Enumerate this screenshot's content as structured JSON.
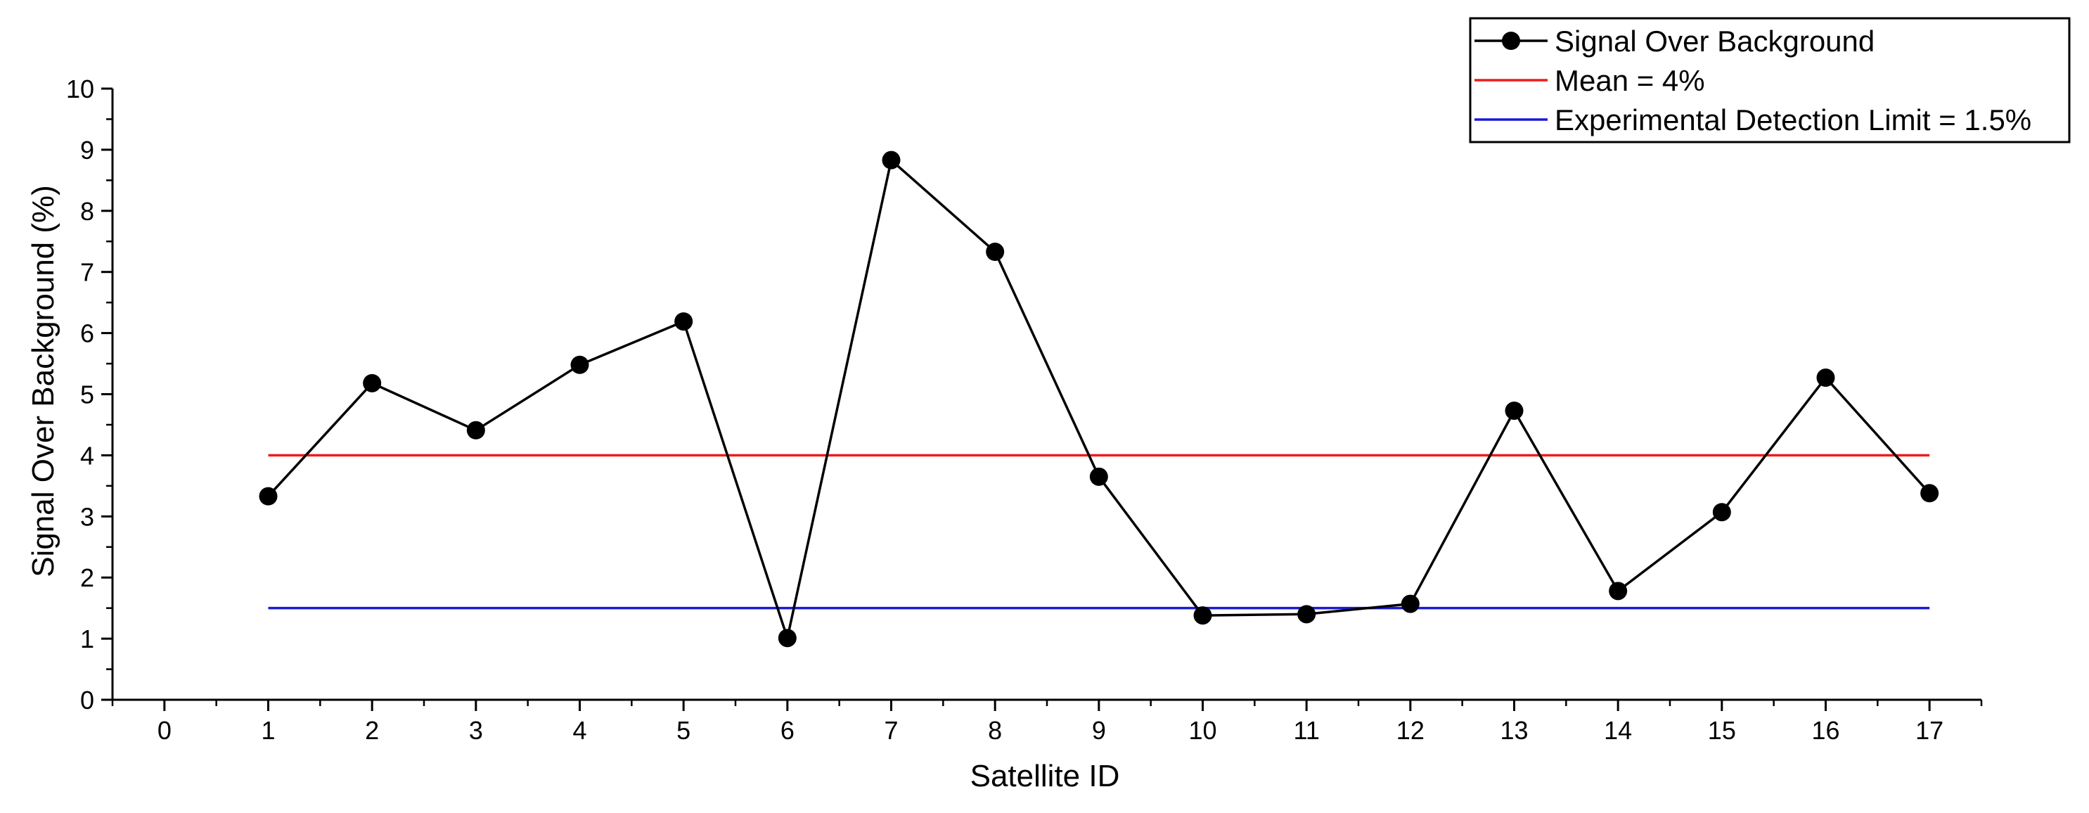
{
  "chart_data": {
    "type": "line",
    "xlabel": "Satellite ID",
    "ylabel": "Signal Over Background (%)",
    "xlim": [
      -0.5,
      17.5
    ],
    "ylim": [
      0,
      10
    ],
    "xticks": [
      "0",
      "1",
      "2",
      "3",
      "4",
      "5",
      "6",
      "7",
      "8",
      "9",
      "10",
      "11",
      "12",
      "13",
      "14",
      "15",
      "16",
      "17"
    ],
    "yticks": [
      "0",
      "1",
      "2",
      "3",
      "4",
      "5",
      "6",
      "7",
      "8",
      "9",
      "10"
    ],
    "grid": false,
    "legend_position": "top-right",
    "series": [
      {
        "name": "Signal Over Background",
        "color": "#000000",
        "marker": "circle",
        "x": [
          1,
          2,
          3,
          4,
          5,
          6,
          7,
          8,
          9,
          10,
          11,
          12,
          13,
          14,
          15,
          16,
          17
        ],
        "y": [
          3.33,
          5.18,
          4.41,
          5.48,
          6.19,
          1.01,
          8.83,
          7.33,
          3.65,
          1.38,
          1.4,
          1.57,
          4.73,
          1.78,
          3.07,
          5.27,
          3.38
        ]
      },
      {
        "name": "Mean = 4%",
        "color": "#ee1c1c",
        "marker": "none",
        "x": [
          1,
          17
        ],
        "y": [
          4,
          4
        ]
      },
      {
        "name": "Experimental Detection Limit = 1.5%",
        "color": "#1a1ad8",
        "marker": "none",
        "x": [
          1,
          17
        ],
        "y": [
          1.5,
          1.5
        ]
      }
    ]
  }
}
